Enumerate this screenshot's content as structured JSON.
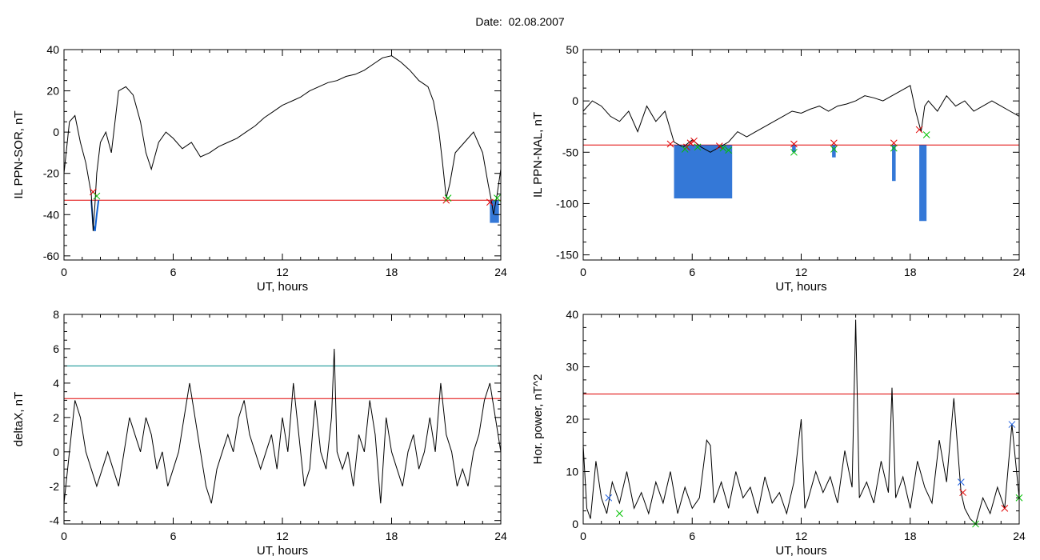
{
  "title": "Date:  02.08.2007",
  "colors": {
    "trace": "#000000",
    "threshold_red": "#e00000",
    "threshold_teal": "#008b8b",
    "fill_blue": "#1060d0",
    "mark_red": "#e00000",
    "mark_green": "#00c000",
    "mark_blue": "#2060e0"
  },
  "chart_data": [
    {
      "type": "line",
      "panel": "top-left",
      "xlabel": "UT, hours",
      "ylabel": "IL PPN-SOR, nT",
      "xlim": [
        0,
        24
      ],
      "ylim": [
        -62,
        40
      ],
      "xticks": [
        0,
        6,
        12,
        18,
        24
      ],
      "yticks": [
        -60,
        -40,
        -20,
        0,
        20,
        40
      ],
      "series": [
        {
          "x": [
            0,
            0.3,
            0.6,
            0.9,
            1.2,
            1.5,
            1.6,
            1.7,
            1.8,
            2.0,
            2.3,
            2.6,
            3.0,
            3.4,
            3.8,
            4.2,
            4.5,
            4.8,
            5.2,
            5.6,
            6.0,
            6.5,
            7.0,
            7.5,
            8.0,
            8.5,
            9.0,
            9.5,
            10,
            10.5,
            11,
            11.5,
            12,
            12.5,
            13,
            13.5,
            14,
            14.5,
            15,
            15.5,
            16,
            16.5,
            17,
            17.5,
            18,
            18.5,
            19,
            19.5,
            20,
            20.3,
            20.6,
            20.8,
            21.0,
            21.2,
            21.5,
            22,
            22.5,
            23,
            23.3,
            23.5,
            23.6,
            23.8,
            24
          ],
          "y": [
            -20,
            5,
            8,
            -5,
            -15,
            -30,
            -48,
            -35,
            -20,
            -5,
            0,
            -10,
            20,
            22,
            18,
            5,
            -10,
            -18,
            -5,
            0,
            -3,
            -8,
            -5,
            -12,
            -10,
            -7,
            -5,
            -3,
            0,
            3,
            7,
            10,
            13,
            15,
            17,
            20,
            22,
            24,
            25,
            27,
            28,
            30,
            33,
            36,
            37,
            34,
            30,
            25,
            22,
            15,
            0,
            -15,
            -32,
            -25,
            -10,
            -5,
            0,
            -10,
            -25,
            -34,
            -40,
            -30,
            -18
          ]
        }
      ],
      "thresholds": [
        {
          "value": -33,
          "color": "red"
        }
      ],
      "marks": [
        {
          "x": 1.6,
          "y": -29,
          "color": "red"
        },
        {
          "x": 1.8,
          "y": -31,
          "color": "green"
        },
        {
          "x": 21.0,
          "y": -33,
          "color": "red"
        },
        {
          "x": 21.1,
          "y": -32,
          "color": "green"
        },
        {
          "x": 23.4,
          "y": -34,
          "color": "red"
        },
        {
          "x": 23.8,
          "y": -32,
          "color": "green"
        }
      ],
      "fills": [
        {
          "x": [
            1.5,
            1.6,
            1.7,
            1.8,
            1.9
          ],
          "y": [
            -33,
            -45,
            -48,
            -40,
            -33
          ]
        },
        {
          "x": 23.4,
          "x2": 23.9,
          "min": -44
        }
      ]
    },
    {
      "type": "line",
      "panel": "top-right",
      "xlabel": "UT, hours",
      "ylabel": "IL PPN-NAL, nT",
      "xlim": [
        0,
        24
      ],
      "ylim": [
        -155,
        50
      ],
      "xticks": [
        0,
        6,
        12,
        18,
        24
      ],
      "yticks": [
        -150,
        -100,
        -50,
        0,
        50
      ],
      "series": [
        {
          "x": [
            0,
            0.5,
            1,
            1.5,
            2,
            2.5,
            3,
            3.5,
            4,
            4.5,
            5,
            5.5,
            6,
            6.5,
            7,
            7.5,
            8,
            8.5,
            9,
            9.5,
            10,
            10.5,
            11,
            11.5,
            12,
            12.5,
            13,
            13.5,
            14,
            14.5,
            15,
            15.5,
            16,
            16.5,
            17,
            17.5,
            18,
            18.3,
            18.6,
            18.8,
            19,
            19.5,
            20,
            20.5,
            21,
            21.5,
            22,
            22.5,
            23,
            23.5,
            24
          ],
          "y": [
            -10,
            0,
            -5,
            -15,
            -20,
            -10,
            -30,
            -5,
            -20,
            -10,
            -40,
            -45,
            -38,
            -45,
            -50,
            -45,
            -40,
            -30,
            -35,
            -30,
            -25,
            -20,
            -15,
            -10,
            -12,
            -8,
            -5,
            -10,
            -5,
            -3,
            0,
            5,
            3,
            0,
            5,
            10,
            15,
            -10,
            -30,
            -5,
            0,
            -10,
            5,
            -5,
            0,
            -10,
            -5,
            0,
            -5,
            -10,
            -15
          ]
        }
      ],
      "thresholds": [
        {
          "value": -43,
          "color": "red"
        }
      ],
      "marks": [
        {
          "x": 4.8,
          "y": -42,
          "color": "red"
        },
        {
          "x": 5.7,
          "y": -45,
          "color": "red"
        },
        {
          "x": 5.9,
          "y": -41,
          "color": "red"
        },
        {
          "x": 6.1,
          "y": -39,
          "color": "red"
        },
        {
          "x": 6.3,
          "y": -45,
          "color": "green"
        },
        {
          "x": 5.6,
          "y": -47,
          "color": "green"
        },
        {
          "x": 7.5,
          "y": -44,
          "color": "red"
        },
        {
          "x": 7.7,
          "y": -46,
          "color": "green"
        },
        {
          "x": 8.0,
          "y": -48,
          "color": "green"
        },
        {
          "x": 11.6,
          "y": -42,
          "color": "red"
        },
        {
          "x": 11.6,
          "y": -50,
          "color": "green"
        },
        {
          "x": 13.8,
          "y": -41,
          "color": "red"
        },
        {
          "x": 13.8,
          "y": -47,
          "color": "green"
        },
        {
          "x": 17.1,
          "y": -41,
          "color": "red"
        },
        {
          "x": 17.1,
          "y": -46,
          "color": "green"
        },
        {
          "x": 18.5,
          "y": -28,
          "color": "red"
        },
        {
          "x": 18.9,
          "y": -33,
          "color": "green"
        }
      ],
      "fills": [
        {
          "x": 5,
          "x2": 8.2,
          "min": -95
        },
        {
          "x": 11.5,
          "x2": 11.7,
          "min": -50
        },
        {
          "x": 13.7,
          "x2": 13.9,
          "min": -55
        },
        {
          "x": 17.0,
          "x2": 17.2,
          "min": -78
        },
        {
          "x": 18.5,
          "x2": 18.9,
          "min": -117
        }
      ]
    },
    {
      "type": "line",
      "panel": "bottom-left",
      "xlabel": "UT, hours",
      "ylabel": "deltaX, nT",
      "xlim": [
        0,
        24
      ],
      "ylim": [
        -4.2,
        8
      ],
      "xticks": [
        0,
        6,
        12,
        18,
        24
      ],
      "yticks": [
        -4,
        -2,
        0,
        2,
        4,
        6,
        8
      ],
      "series": [
        {
          "x": [
            0,
            0.3,
            0.6,
            0.9,
            1.2,
            1.5,
            1.8,
            2.1,
            2.4,
            2.7,
            3,
            3.3,
            3.6,
            3.9,
            4.2,
            4.5,
            4.8,
            5.1,
            5.4,
            5.7,
            6,
            6.3,
            6.6,
            6.9,
            7.2,
            7.5,
            7.8,
            8.1,
            8.4,
            8.7,
            9,
            9.3,
            9.6,
            9.9,
            10.2,
            10.5,
            10.8,
            11.1,
            11.4,
            11.7,
            12,
            12.3,
            12.6,
            12.9,
            13.2,
            13.5,
            13.8,
            14.1,
            14.4,
            14.7,
            14.85,
            15.0,
            15.3,
            15.6,
            15.9,
            16.2,
            16.5,
            16.8,
            17.1,
            17.4,
            17.7,
            18,
            18.3,
            18.6,
            18.9,
            19.2,
            19.5,
            19.8,
            20.1,
            20.4,
            20.7,
            21,
            21.3,
            21.6,
            21.9,
            22.2,
            22.5,
            22.8,
            23.1,
            23.4,
            23.7,
            24
          ],
          "y": [
            -3,
            0,
            3,
            2,
            0,
            -1,
            -2,
            -1,
            0,
            -1,
            -2,
            0,
            2,
            1,
            0,
            2,
            1,
            -1,
            0,
            -2,
            -1,
            0,
            2,
            4,
            2,
            0,
            -2,
            -3,
            -1,
            0,
            1,
            0,
            2,
            3,
            1,
            0,
            -1,
            0,
            1,
            -1,
            2,
            0,
            4,
            1,
            -2,
            -1,
            3,
            0,
            -1,
            2,
            6,
            0,
            -1,
            0,
            -2,
            1,
            0,
            3,
            1,
            -3,
            2,
            0,
            -1,
            -2,
            0,
            1,
            -1,
            0,
            2,
            0,
            4,
            1,
            0,
            -2,
            -1,
            -2,
            0,
            1,
            3,
            4,
            2,
            0
          ]
        }
      ],
      "thresholds": [
        {
          "value": 5,
          "color": "teal"
        },
        {
          "value": 3.1,
          "color": "red"
        }
      ]
    },
    {
      "type": "line",
      "panel": "bottom-right",
      "xlabel": "UT, hours",
      "ylabel": "Hor. power, nT^2",
      "xlim": [
        0,
        24
      ],
      "ylim": [
        0,
        40
      ],
      "xticks": [
        0,
        6,
        12,
        18,
        24
      ],
      "yticks": [
        0,
        10,
        20,
        30,
        40
      ],
      "series": [
        {
          "x": [
            0,
            0.2,
            0.4,
            0.7,
            1,
            1.3,
            1.6,
            2,
            2.4,
            2.8,
            3.2,
            3.6,
            4,
            4.4,
            4.8,
            5.2,
            5.6,
            6,
            6.4,
            6.8,
            7.0,
            7.2,
            7.6,
            8,
            8.4,
            8.8,
            9.2,
            9.6,
            10,
            10.4,
            10.8,
            11.2,
            11.6,
            12,
            12.2,
            12.4,
            12.8,
            13.2,
            13.6,
            14,
            14.4,
            14.8,
            15.0,
            15.2,
            15.6,
            16,
            16.4,
            16.8,
            17.0,
            17.2,
            17.6,
            18,
            18.4,
            18.8,
            19.2,
            19.6,
            20,
            20.4,
            20.8,
            21,
            21.3,
            21.6,
            22,
            22.4,
            22.8,
            23.2,
            23.6,
            24
          ],
          "y": [
            15,
            3,
            1,
            12,
            5,
            2,
            8,
            4,
            10,
            3,
            6,
            2,
            8,
            4,
            10,
            2,
            7,
            3,
            5,
            16,
            15,
            4,
            8,
            3,
            10,
            5,
            7,
            2,
            9,
            4,
            6,
            2,
            8,
            20,
            3,
            5,
            10,
            6,
            9,
            4,
            14,
            7,
            39,
            5,
            8,
            4,
            12,
            6,
            26,
            5,
            9,
            3,
            12,
            7,
            4,
            16,
            8,
            24,
            6,
            3,
            1,
            0,
            5,
            2,
            7,
            3,
            19,
            5
          ]
        }
      ],
      "thresholds": [
        {
          "value": 24.8,
          "color": "red"
        }
      ],
      "marks": [
        {
          "x": 1.4,
          "y": 5,
          "color": "blue"
        },
        {
          "x": 2.0,
          "y": 2,
          "color": "green"
        },
        {
          "x": 20.8,
          "y": 8,
          "color": "blue"
        },
        {
          "x": 20.9,
          "y": 6,
          "color": "red"
        },
        {
          "x": 21.6,
          "y": 0,
          "color": "green"
        },
        {
          "x": 23.2,
          "y": 3,
          "color": "red"
        },
        {
          "x": 23.6,
          "y": 19,
          "color": "blue"
        },
        {
          "x": 24,
          "y": 5,
          "color": "green"
        }
      ]
    }
  ]
}
